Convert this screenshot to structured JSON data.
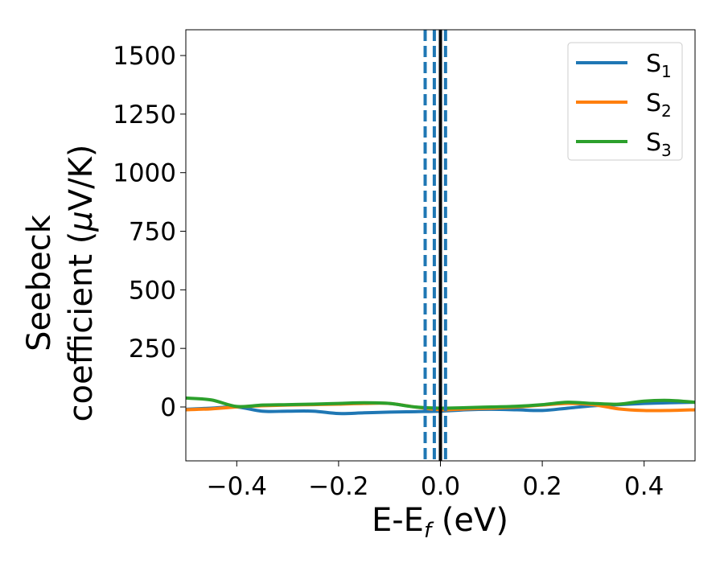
{
  "chart_data": {
    "type": "line",
    "xlabel": "E-E",
    "xlabel_sub": "f",
    "xlabel_unit": " (eV)",
    "ylabel_line1": "Seebeck",
    "ylabel_line2_pre": "coefficient  (",
    "ylabel_line2_mu": "μ",
    "ylabel_line2_post": "V/K)",
    "xlim": [
      -0.5,
      0.5
    ],
    "ylim": [
      -230,
      1610
    ],
    "xticks": [
      -0.4,
      -0.2,
      0.0,
      0.2,
      0.4
    ],
    "xtick_labels": [
      "−0.4",
      "−0.2",
      "0.0",
      "0.2",
      "0.4"
    ],
    "yticks": [
      0,
      250,
      500,
      750,
      1000,
      1250,
      1500
    ],
    "ytick_labels": [
      "0",
      "250",
      "500",
      "750",
      "1000",
      "1250",
      "1500"
    ],
    "legend_position": "top-right",
    "series": [
      {
        "name": "S",
        "sub": "1",
        "color": "#1f77b4",
        "x": [
          -0.5,
          -0.45,
          -0.4,
          -0.35,
          -0.3,
          -0.25,
          -0.2,
          -0.15,
          -0.1,
          -0.05,
          0.0,
          0.05,
          0.1,
          0.15,
          0.2,
          0.25,
          0.3,
          0.35,
          0.4,
          0.45,
          0.5
        ],
        "y": [
          -10,
          -5,
          0,
          -18,
          -18,
          -18,
          -28,
          -25,
          -22,
          -20,
          -18,
          -12,
          -10,
          -12,
          -15,
          -5,
          5,
          10,
          15,
          18,
          20
        ]
      },
      {
        "name": "S",
        "sub": "2",
        "color": "#ff7f0e",
        "x": [
          -0.5,
          -0.45,
          -0.4,
          -0.35,
          -0.3,
          -0.25,
          -0.2,
          -0.15,
          -0.1,
          -0.05,
          0.0,
          0.05,
          0.1,
          0.15,
          0.2,
          0.25,
          0.3,
          0.35,
          0.4,
          0.45,
          0.5
        ],
        "y": [
          -12,
          -8,
          0,
          5,
          8,
          10,
          12,
          15,
          15,
          0,
          -12,
          -8,
          -5,
          0,
          8,
          15,
          10,
          -8,
          -15,
          -15,
          -12
        ]
      },
      {
        "name": "S",
        "sub": "3",
        "color": "#2ca02c",
        "x": [
          -0.5,
          -0.45,
          -0.4,
          -0.35,
          -0.3,
          -0.25,
          -0.2,
          -0.15,
          -0.1,
          -0.05,
          0.0,
          0.05,
          0.1,
          0.15,
          0.2,
          0.25,
          0.3,
          0.35,
          0.4,
          0.45,
          0.5
        ],
        "y": [
          38,
          30,
          2,
          8,
          10,
          12,
          15,
          18,
          15,
          0,
          -5,
          -3,
          0,
          3,
          10,
          20,
          15,
          12,
          25,
          28,
          20
        ]
      }
    ],
    "vlines": [
      {
        "x": -0.03,
        "style": "dashed",
        "color": "#1f77b4"
      },
      {
        "x": -0.012,
        "style": "dashed",
        "color": "#1f77b4"
      },
      {
        "x": 0.01,
        "style": "dashed",
        "color": "#1f77b4"
      },
      {
        "x": 0.0,
        "style": "solid",
        "color": "#000000"
      }
    ]
  }
}
